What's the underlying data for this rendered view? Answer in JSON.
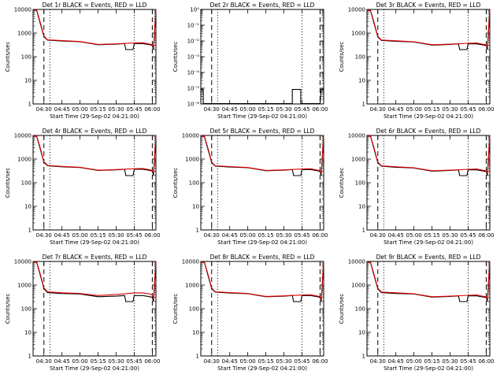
{
  "chart_data": [
    {
      "type": "line",
      "title": "Det 1r BLACK = Events, RED = LLD",
      "xlabel": "Start Time (29-Sep-02 04:21:00)",
      "ylabel": "Counts/sec",
      "y_scale": "log",
      "ylim": [
        1,
        10000
      ],
      "yticks": [
        "1",
        "10",
        "100",
        "1000",
        "10000"
      ],
      "xlim": [
        "04:21:00",
        "06:03:00"
      ],
      "xticks": [
        "04:30",
        "04:45",
        "05:00",
        "05:15",
        "05:30",
        "05:45",
        "06:00"
      ],
      "dashed_lines": [
        "04:30",
        "06:00"
      ],
      "dotted_lines": [
        "04:35",
        "05:45"
      ],
      "series": [
        {
          "name": "Events",
          "color": "#000000",
          "x": [
            "04:21",
            "04:24",
            "04:27",
            "04:30",
            "04:33",
            "04:45",
            "05:00",
            "05:15",
            "05:30",
            "05:37",
            "05:38",
            "05:44",
            "05:45",
            "05:52",
            "05:58",
            "06:00",
            "06:01",
            "06:03"
          ],
          "y": [
            10000,
            9000,
            2500,
            700,
            500,
            460,
            430,
            320,
            340,
            360,
            200,
            200,
            360,
            360,
            320,
            300,
            200,
            10000
          ]
        },
        {
          "name": "LLD",
          "color": "#e00000",
          "x": [
            "04:21",
            "04:24",
            "04:27",
            "04:30",
            "04:33",
            "04:45",
            "05:00",
            "05:15",
            "05:30",
            "05:45",
            "05:52",
            "05:58",
            "06:00",
            "06:01",
            "06:03"
          ],
          "y": [
            10000,
            9500,
            2800,
            750,
            520,
            480,
            440,
            330,
            350,
            380,
            390,
            340,
            320,
            250,
            10000
          ]
        }
      ]
    },
    {
      "type": "line",
      "title": "Det 2r BLACK = Events, RED = LLD",
      "xlabel": "Start Time (29-Sep-02 04:21:00)",
      "ylabel": "Counts/sec",
      "y_scale": "log",
      "ylim": [
        0.8,
        1e-06
      ],
      "yticks": [
        "10⁻⁶",
        "10⁻⁵",
        "10⁻⁴",
        "10⁻³",
        "10⁻²",
        "10⁻¹",
        "10⁰"
      ],
      "xlim": [
        "04:21:00",
        "06:03:00"
      ],
      "xticks": [
        "04:30",
        "04:45",
        "05:00",
        "05:15",
        "05:30",
        "05:45",
        "06:00"
      ],
      "dashed_lines": [
        "04:30",
        "06:00"
      ],
      "dotted_lines": [
        "04:35",
        "05:45"
      ],
      "series": [
        {
          "name": "Events",
          "color": "#000000",
          "x": [
            "04:21",
            "04:23",
            "04:23",
            "05:37",
            "05:37",
            "05:44",
            "05:44",
            "06:00",
            "06:01",
            "06:03"
          ],
          "y": [
            0.1,
            0.1,
            0.8,
            0.8,
            0.1,
            0.1,
            0.8,
            0.8,
            0.1,
            0.1
          ]
        }
      ]
    },
    {
      "type": "line",
      "title": "Det 3r BLACK = Events, RED = LLD",
      "xlabel": "Start Time (29-Sep-02 04:21:00)",
      "ylabel": "Counts/sec",
      "y_scale": "log",
      "ylim": [
        1,
        10000
      ],
      "yticks": [
        "1",
        "10",
        "100",
        "1000",
        "10000"
      ],
      "xlim": [
        "04:21:00",
        "06:03:00"
      ],
      "xticks": [
        "04:30",
        "04:45",
        "05:00",
        "05:15",
        "05:30",
        "05:45",
        "06:00"
      ],
      "dashed_lines": [
        "04:30",
        "06:00"
      ],
      "dotted_lines": [
        "04:35",
        "05:45"
      ],
      "series": [
        {
          "name": "Events",
          "color": "#000000",
          "x": [
            "04:21",
            "04:24",
            "04:27",
            "04:30",
            "04:33",
            "04:45",
            "05:00",
            "05:15",
            "05:30",
            "05:37",
            "05:38",
            "05:44",
            "05:45",
            "05:52",
            "05:58",
            "06:00",
            "06:01",
            "06:03"
          ],
          "y": [
            10000,
            8500,
            2400,
            680,
            490,
            450,
            420,
            310,
            330,
            350,
            200,
            200,
            350,
            350,
            310,
            300,
            200,
            10000
          ]
        },
        {
          "name": "LLD",
          "color": "#e00000",
          "x": [
            "04:21",
            "04:24",
            "04:27",
            "04:30",
            "04:33",
            "04:45",
            "05:00",
            "05:15",
            "05:30",
            "05:45",
            "05:52",
            "05:58",
            "06:00",
            "06:01",
            "06:03"
          ],
          "y": [
            10000,
            9000,
            2700,
            720,
            510,
            470,
            430,
            320,
            340,
            370,
            380,
            330,
            320,
            250,
            10000
          ]
        }
      ]
    },
    {
      "type": "line",
      "title": "Det 4r BLACK = Events, RED = LLD",
      "xlabel": "Start Time (29-Sep-02 04:21:00)",
      "ylabel": "Counts/sec",
      "y_scale": "log",
      "ylim": [
        1,
        10000
      ],
      "yticks": [
        "1",
        "10",
        "100",
        "1000",
        "10000"
      ],
      "xlim": [
        "04:21:00",
        "06:03:00"
      ],
      "xticks": [
        "04:30",
        "04:45",
        "05:00",
        "05:15",
        "05:30",
        "05:45",
        "06:00"
      ],
      "dashed_lines": [
        "04:30",
        "06:00"
      ],
      "dotted_lines": [
        "04:35",
        "05:45"
      ],
      "series": [
        {
          "name": "Events",
          "color": "#000000",
          "x": [
            "04:21",
            "04:24",
            "04:27",
            "04:30",
            "04:33",
            "04:45",
            "05:00",
            "05:15",
            "05:30",
            "05:37",
            "05:38",
            "05:44",
            "05:45",
            "05:52",
            "05:58",
            "06:00",
            "06:01",
            "06:03"
          ],
          "y": [
            10000,
            9000,
            2600,
            720,
            520,
            470,
            440,
            330,
            350,
            370,
            200,
            200,
            370,
            370,
            330,
            310,
            200,
            10000
          ]
        },
        {
          "name": "LLD",
          "color": "#e00000",
          "x": [
            "04:21",
            "04:24",
            "04:27",
            "04:30",
            "04:33",
            "04:45",
            "05:00",
            "05:15",
            "05:30",
            "05:45",
            "05:52",
            "05:58",
            "06:00",
            "06:01",
            "06:03"
          ],
          "y": [
            10000,
            9500,
            2900,
            770,
            540,
            490,
            450,
            340,
            360,
            390,
            400,
            350,
            330,
            260,
            10000
          ]
        }
      ]
    },
    {
      "type": "line",
      "title": "Det 5r BLACK = Events, RED = LLD",
      "xlabel": "Start Time (29-Sep-02 04:21:00)",
      "ylabel": "Counts/sec",
      "y_scale": "log",
      "ylim": [
        1,
        10000
      ],
      "yticks": [
        "1",
        "10",
        "100",
        "1000",
        "10000"
      ],
      "xlim": [
        "04:21:00",
        "06:03:00"
      ],
      "xticks": [
        "04:30",
        "04:45",
        "05:00",
        "05:15",
        "05:30",
        "05:45",
        "06:00"
      ],
      "dashed_lines": [
        "04:30",
        "06:00"
      ],
      "dotted_lines": [
        "04:35",
        "05:45"
      ],
      "series": [
        {
          "name": "Events",
          "color": "#000000",
          "x": [
            "04:21",
            "04:24",
            "04:27",
            "04:30",
            "04:33",
            "04:45",
            "05:00",
            "05:15",
            "05:30",
            "05:37",
            "05:38",
            "05:44",
            "05:45",
            "05:52",
            "05:58",
            "06:00",
            "06:01",
            "06:03"
          ],
          "y": [
            10000,
            8800,
            2500,
            700,
            500,
            460,
            430,
            320,
            340,
            360,
            200,
            200,
            360,
            360,
            320,
            300,
            200,
            10000
          ]
        },
        {
          "name": "LLD",
          "color": "#e00000",
          "x": [
            "04:21",
            "04:24",
            "04:27",
            "04:30",
            "04:33",
            "04:45",
            "05:00",
            "05:15",
            "05:30",
            "05:45",
            "05:52",
            "05:58",
            "06:00",
            "06:01",
            "06:03"
          ],
          "y": [
            10000,
            9300,
            2800,
            750,
            520,
            480,
            440,
            330,
            350,
            380,
            390,
            340,
            320,
            250,
            10000
          ]
        }
      ]
    },
    {
      "type": "line",
      "title": "Det 6r BLACK = Events, RED = LLD",
      "xlabel": "Start Time (29-Sep-02 04:21:00)",
      "ylabel": "Counts/sec",
      "y_scale": "log",
      "ylim": [
        1,
        10000
      ],
      "yticks": [
        "1",
        "10",
        "100",
        "1000",
        "10000"
      ],
      "xlim": [
        "04:21:00",
        "06:03:00"
      ],
      "xticks": [
        "04:30",
        "04:45",
        "05:00",
        "05:15",
        "05:30",
        "05:45",
        "06:00"
      ],
      "dashed_lines": [
        "04:30",
        "06:00"
      ],
      "dotted_lines": [
        "04:35",
        "05:45"
      ],
      "series": [
        {
          "name": "Events",
          "color": "#000000",
          "x": [
            "04:21",
            "04:24",
            "04:27",
            "04:30",
            "04:33",
            "04:45",
            "05:00",
            "05:15",
            "05:30",
            "05:37",
            "05:38",
            "05:44",
            "05:45",
            "05:52",
            "05:58",
            "06:00",
            "06:01",
            "06:03"
          ],
          "y": [
            10000,
            9000,
            2500,
            690,
            500,
            450,
            420,
            310,
            330,
            350,
            200,
            200,
            350,
            350,
            310,
            300,
            200,
            10000
          ]
        },
        {
          "name": "LLD",
          "color": "#e00000",
          "x": [
            "04:21",
            "04:24",
            "04:27",
            "04:30",
            "04:33",
            "04:45",
            "05:00",
            "05:15",
            "05:30",
            "05:45",
            "05:52",
            "05:58",
            "06:00",
            "06:01",
            "06:03"
          ],
          "y": [
            10000,
            9400,
            2800,
            740,
            520,
            470,
            430,
            320,
            340,
            370,
            380,
            330,
            320,
            250,
            10000
          ]
        }
      ]
    },
    {
      "type": "line",
      "title": "Det 7r BLACK = Events, RED = LLD",
      "xlabel": "Start Time (29-Sep-02 04:21:00)",
      "ylabel": "Counts/sec",
      "y_scale": "log",
      "ylim": [
        1,
        10000
      ],
      "yticks": [
        "1",
        "10",
        "100",
        "1000",
        "10000"
      ],
      "xlim": [
        "04:21:00",
        "06:03:00"
      ],
      "xticks": [
        "04:30",
        "04:45",
        "05:00",
        "05:15",
        "05:30",
        "05:45",
        "06:00"
      ],
      "dashed_lines": [
        "04:30",
        "06:00"
      ],
      "dotted_lines": [
        "04:35",
        "05:45"
      ],
      "series": [
        {
          "name": "Events",
          "color": "#000000",
          "x": [
            "04:21",
            "04:24",
            "04:27",
            "04:30",
            "04:33",
            "04:45",
            "05:00",
            "05:15",
            "05:30",
            "05:37",
            "05:38",
            "05:44",
            "05:45",
            "05:52",
            "05:58",
            "06:00",
            "06:01",
            "06:03"
          ],
          "y": [
            10000,
            9000,
            2600,
            700,
            480,
            440,
            420,
            320,
            340,
            360,
            200,
            200,
            360,
            360,
            320,
            300,
            200,
            10000
          ]
        },
        {
          "name": "LLD",
          "color": "#e00000",
          "x": [
            "04:21",
            "04:24",
            "04:27",
            "04:30",
            "04:33",
            "04:45",
            "05:00",
            "05:15",
            "05:30",
            "05:45",
            "05:52",
            "05:58",
            "06:00",
            "06:01",
            "06:03"
          ],
          "y": [
            10000,
            9500,
            2900,
            760,
            520,
            470,
            440,
            360,
            400,
            460,
            470,
            420,
            380,
            260,
            10000
          ]
        }
      ]
    },
    {
      "type": "line",
      "title": "Det 8r BLACK = Events, RED = LLD",
      "xlabel": "Start Time (29-Sep-02 04:21:00)",
      "ylabel": "Counts/sec",
      "y_scale": "log",
      "ylim": [
        1,
        10000
      ],
      "yticks": [
        "1",
        "10",
        "100",
        "1000",
        "10000"
      ],
      "xlim": [
        "04:21:00",
        "06:03:00"
      ],
      "xticks": [
        "04:30",
        "04:45",
        "05:00",
        "05:15",
        "05:30",
        "05:45",
        "06:00"
      ],
      "dashed_lines": [
        "04:30",
        "06:00"
      ],
      "dotted_lines": [
        "04:35",
        "05:45"
      ],
      "series": [
        {
          "name": "Events",
          "color": "#000000",
          "x": [
            "04:21",
            "04:24",
            "04:27",
            "04:30",
            "04:33",
            "04:45",
            "05:00",
            "05:15",
            "05:30",
            "05:37",
            "05:38",
            "05:44",
            "05:45",
            "05:52",
            "05:58",
            "06:00",
            "06:01",
            "06:03"
          ],
          "y": [
            10000,
            8900,
            2500,
            700,
            500,
            460,
            430,
            320,
            340,
            360,
            200,
            200,
            360,
            360,
            320,
            300,
            200,
            10000
          ]
        },
        {
          "name": "LLD",
          "color": "#e00000",
          "x": [
            "04:21",
            "04:24",
            "04:27",
            "04:30",
            "04:33",
            "04:45",
            "05:00",
            "05:15",
            "05:30",
            "05:45",
            "05:52",
            "05:58",
            "06:00",
            "06:01",
            "06:03"
          ],
          "y": [
            10000,
            9400,
            2800,
            750,
            520,
            480,
            440,
            330,
            350,
            380,
            390,
            340,
            320,
            250,
            10000
          ]
        }
      ]
    },
    {
      "type": "line",
      "title": "Det 9r BLACK = Events, RED = LLD",
      "xlabel": "Start Time (29-Sep-02 04:21:00)",
      "ylabel": "Counts/sec",
      "y_scale": "log",
      "ylim": [
        1,
        10000
      ],
      "yticks": [
        "1",
        "10",
        "100",
        "1000",
        "10000"
      ],
      "xlim": [
        "04:21:00",
        "06:03:00"
      ],
      "xticks": [
        "04:30",
        "04:45",
        "05:00",
        "05:15",
        "05:30",
        "05:45",
        "06:00"
      ],
      "dashed_lines": [
        "04:30",
        "06:00"
      ],
      "dotted_lines": [
        "04:35",
        "05:45"
      ],
      "series": [
        {
          "name": "Events",
          "color": "#000000",
          "x": [
            "04:21",
            "04:24",
            "04:27",
            "04:30",
            "04:33",
            "04:45",
            "05:00",
            "05:15",
            "05:30",
            "05:37",
            "05:38",
            "05:44",
            "05:45",
            "05:52",
            "05:58",
            "06:00",
            "06:01",
            "06:03"
          ],
          "y": [
            10000,
            8800,
            2400,
            680,
            480,
            440,
            420,
            310,
            330,
            350,
            200,
            200,
            350,
            350,
            310,
            300,
            200,
            10000
          ]
        },
        {
          "name": "LLD",
          "color": "#e00000",
          "x": [
            "04:21",
            "04:24",
            "04:27",
            "04:30",
            "04:33",
            "04:45",
            "05:00",
            "05:15",
            "05:30",
            "05:45",
            "05:52",
            "05:58",
            "06:00",
            "06:01",
            "06:03"
          ],
          "y": [
            10000,
            9200,
            2700,
            730,
            510,
            470,
            430,
            320,
            340,
            370,
            380,
            330,
            320,
            250,
            10000
          ]
        }
      ]
    }
  ]
}
